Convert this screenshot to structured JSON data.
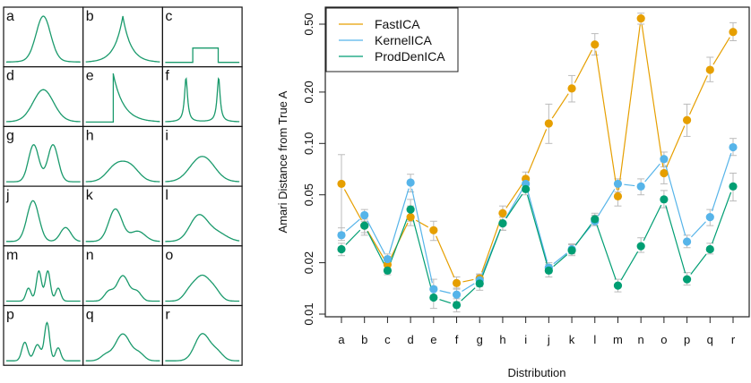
{
  "chart_data": [
    {
      "type": "line",
      "title": "",
      "description": "Grid of 18 source density shapes used as distributions",
      "panels": [
        {
          "label": "a",
          "shape": "gaussian-like symmetric peak"
        },
        {
          "label": "b",
          "shape": "double-exponential sharp peak"
        },
        {
          "label": "c",
          "shape": "uniform box"
        },
        {
          "label": "d",
          "shape": "wide smooth peak"
        },
        {
          "label": "e",
          "shape": "exponential (one-sided)"
        },
        {
          "label": "f",
          "shape": "sharp bimodal"
        },
        {
          "label": "g",
          "shape": "bimodal separated"
        },
        {
          "label": "h",
          "shape": "flat-top bimodal"
        },
        {
          "label": "i",
          "shape": "flat-top broad peak"
        },
        {
          "label": "j",
          "shape": "asymmetric bimodal (large + small)"
        },
        {
          "label": "k",
          "shape": "skewed with shoulder"
        },
        {
          "label": "l",
          "shape": "right-skewed"
        },
        {
          "label": "m",
          "shape": "four-mode"
        },
        {
          "label": "n",
          "shape": "central peak with two shoulders"
        },
        {
          "label": "o",
          "shape": "broad with shoulders"
        },
        {
          "label": "p",
          "shape": "multi-modal asymmetric"
        },
        {
          "label": "q",
          "shape": "peak with left/right shoulders"
        },
        {
          "label": "r",
          "shape": "peak with right shoulder"
        }
      ],
      "line_color": "#1a9a6c"
    },
    {
      "type": "line",
      "title": "",
      "xlabel": "Distribution",
      "ylabel": "Amari Distance from True A",
      "yscale": "log",
      "ylim": [
        0.0097,
        0.58
      ],
      "yticks": [
        0.01,
        0.02,
        0.05,
        0.1,
        0.2,
        0.5
      ],
      "ytick_labels": [
        "0.01",
        "0.02",
        "0.05",
        "0.10",
        "0.20",
        "0.50"
      ],
      "categories": [
        "a",
        "b",
        "c",
        "d",
        "e",
        "f",
        "g",
        "h",
        "i",
        "j",
        "k",
        "l",
        "m",
        "n",
        "o",
        "p",
        "q",
        "r"
      ],
      "grid": false,
      "legend": "top-left",
      "errorbar_color": "#bbbbbb",
      "series": [
        {
          "name": "FastICA",
          "color": "#e69f00",
          "values": [
            0.058,
            0.033,
            0.0195,
            0.037,
            0.031,
            0.0152,
            0.0162,
            0.039,
            0.062,
            0.131,
            0.21,
            0.38,
            0.049,
            0.54,
            0.067,
            0.137,
            0.27,
            0.45
          ],
          "err_low": [
            0.03,
            0.029,
            0.0185,
            0.033,
            0.027,
            0.014,
            0.015,
            0.035,
            0.057,
            0.1,
            0.175,
            0.33,
            0.043,
            0.5,
            0.058,
            0.11,
            0.23,
            0.4
          ],
          "err_high": [
            0.086,
            0.037,
            0.0205,
            0.043,
            0.035,
            0.0165,
            0.0172,
            0.043,
            0.068,
            0.17,
            0.25,
            0.44,
            0.058,
            0.58,
            0.078,
            0.17,
            0.32,
            0.51
          ]
        },
        {
          "name": "KernelICA",
          "color": "#56b4e9",
          "values": [
            0.029,
            0.038,
            0.021,
            0.059,
            0.014,
            0.013,
            0.0158,
            0.034,
            0.058,
            0.0187,
            0.024,
            0.035,
            0.058,
            0.056,
            0.081,
            0.0266,
            0.037,
            0.095
          ],
          "err_low": [
            0.027,
            0.035,
            0.0195,
            0.052,
            0.0125,
            0.0118,
            0.0145,
            0.031,
            0.054,
            0.0175,
            0.0225,
            0.033,
            0.052,
            0.05,
            0.073,
            0.0245,
            0.033,
            0.085
          ],
          "err_high": [
            0.032,
            0.041,
            0.0225,
            0.066,
            0.016,
            0.0142,
            0.017,
            0.037,
            0.062,
            0.02,
            0.0258,
            0.038,
            0.062,
            0.062,
            0.089,
            0.029,
            0.041,
            0.107
          ]
        },
        {
          "name": "ProdDenICA",
          "color": "#009e73",
          "values": [
            0.024,
            0.033,
            0.018,
            0.041,
            0.0125,
            0.0113,
            0.0151,
            0.034,
            0.054,
            0.018,
            0.0236,
            0.036,
            0.0147,
            0.025,
            0.047,
            0.016,
            0.024,
            0.056
          ],
          "err_low": [
            0.022,
            0.03,
            0.017,
            0.035,
            0.0108,
            0.0103,
            0.0138,
            0.031,
            0.05,
            0.0165,
            0.022,
            0.033,
            0.0135,
            0.023,
            0.042,
            0.0148,
            0.0225,
            0.046
          ],
          "err_high": [
            0.026,
            0.036,
            0.0192,
            0.047,
            0.0145,
            0.0123,
            0.0163,
            0.037,
            0.059,
            0.0195,
            0.0255,
            0.039,
            0.016,
            0.028,
            0.053,
            0.0175,
            0.026,
            0.067
          ]
        }
      ]
    }
  ]
}
